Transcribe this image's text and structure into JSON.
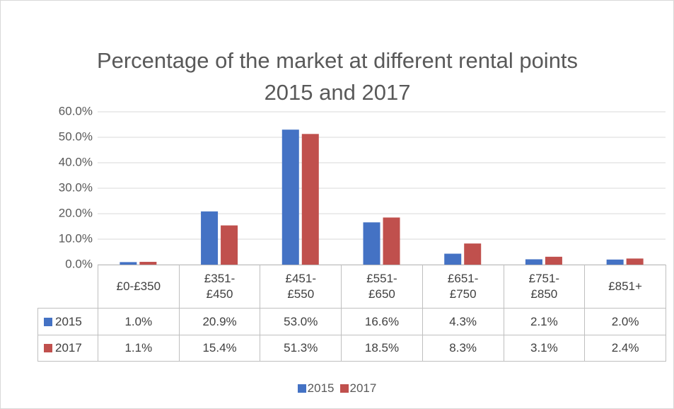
{
  "chart_data": {
    "type": "bar",
    "title": "Percentage of the market at different rental points 2015 and 2017",
    "categories": [
      "£0-£350",
      "£351-£450",
      "£451-£550",
      "£551-£650",
      "£651-£750",
      "£751-£850",
      "£851+"
    ],
    "series": [
      {
        "name": "2015",
        "color": "#4472c4",
        "values": [
          1.0,
          20.9,
          53.0,
          16.6,
          4.3,
          2.1,
          2.0
        ],
        "value_labels": [
          "1.0%",
          "20.9%",
          "53.0%",
          "16.6%",
          "4.3%",
          "2.1%",
          "2.0%"
        ]
      },
      {
        "name": "2017",
        "color": "#c0504d",
        "values": [
          1.1,
          15.4,
          51.3,
          18.5,
          8.3,
          3.1,
          2.4
        ],
        "value_labels": [
          "1.1%",
          "15.4%",
          "51.3%",
          "18.5%",
          "8.3%",
          "3.1%",
          "2.4%"
        ]
      }
    ],
    "ylim": [
      0,
      60
    ],
    "yticks": [
      {
        "value": 0,
        "label": "0.0%"
      },
      {
        "value": 10,
        "label": "10.0%"
      },
      {
        "value": 20,
        "label": "20.0%"
      },
      {
        "value": 30,
        "label": "30.0%"
      },
      {
        "value": 40,
        "label": "40.0%"
      },
      {
        "value": 50,
        "label": "50.0%"
      },
      {
        "value": 60,
        "label": "60.0%"
      }
    ],
    "grid": true,
    "legend": "bottom"
  }
}
